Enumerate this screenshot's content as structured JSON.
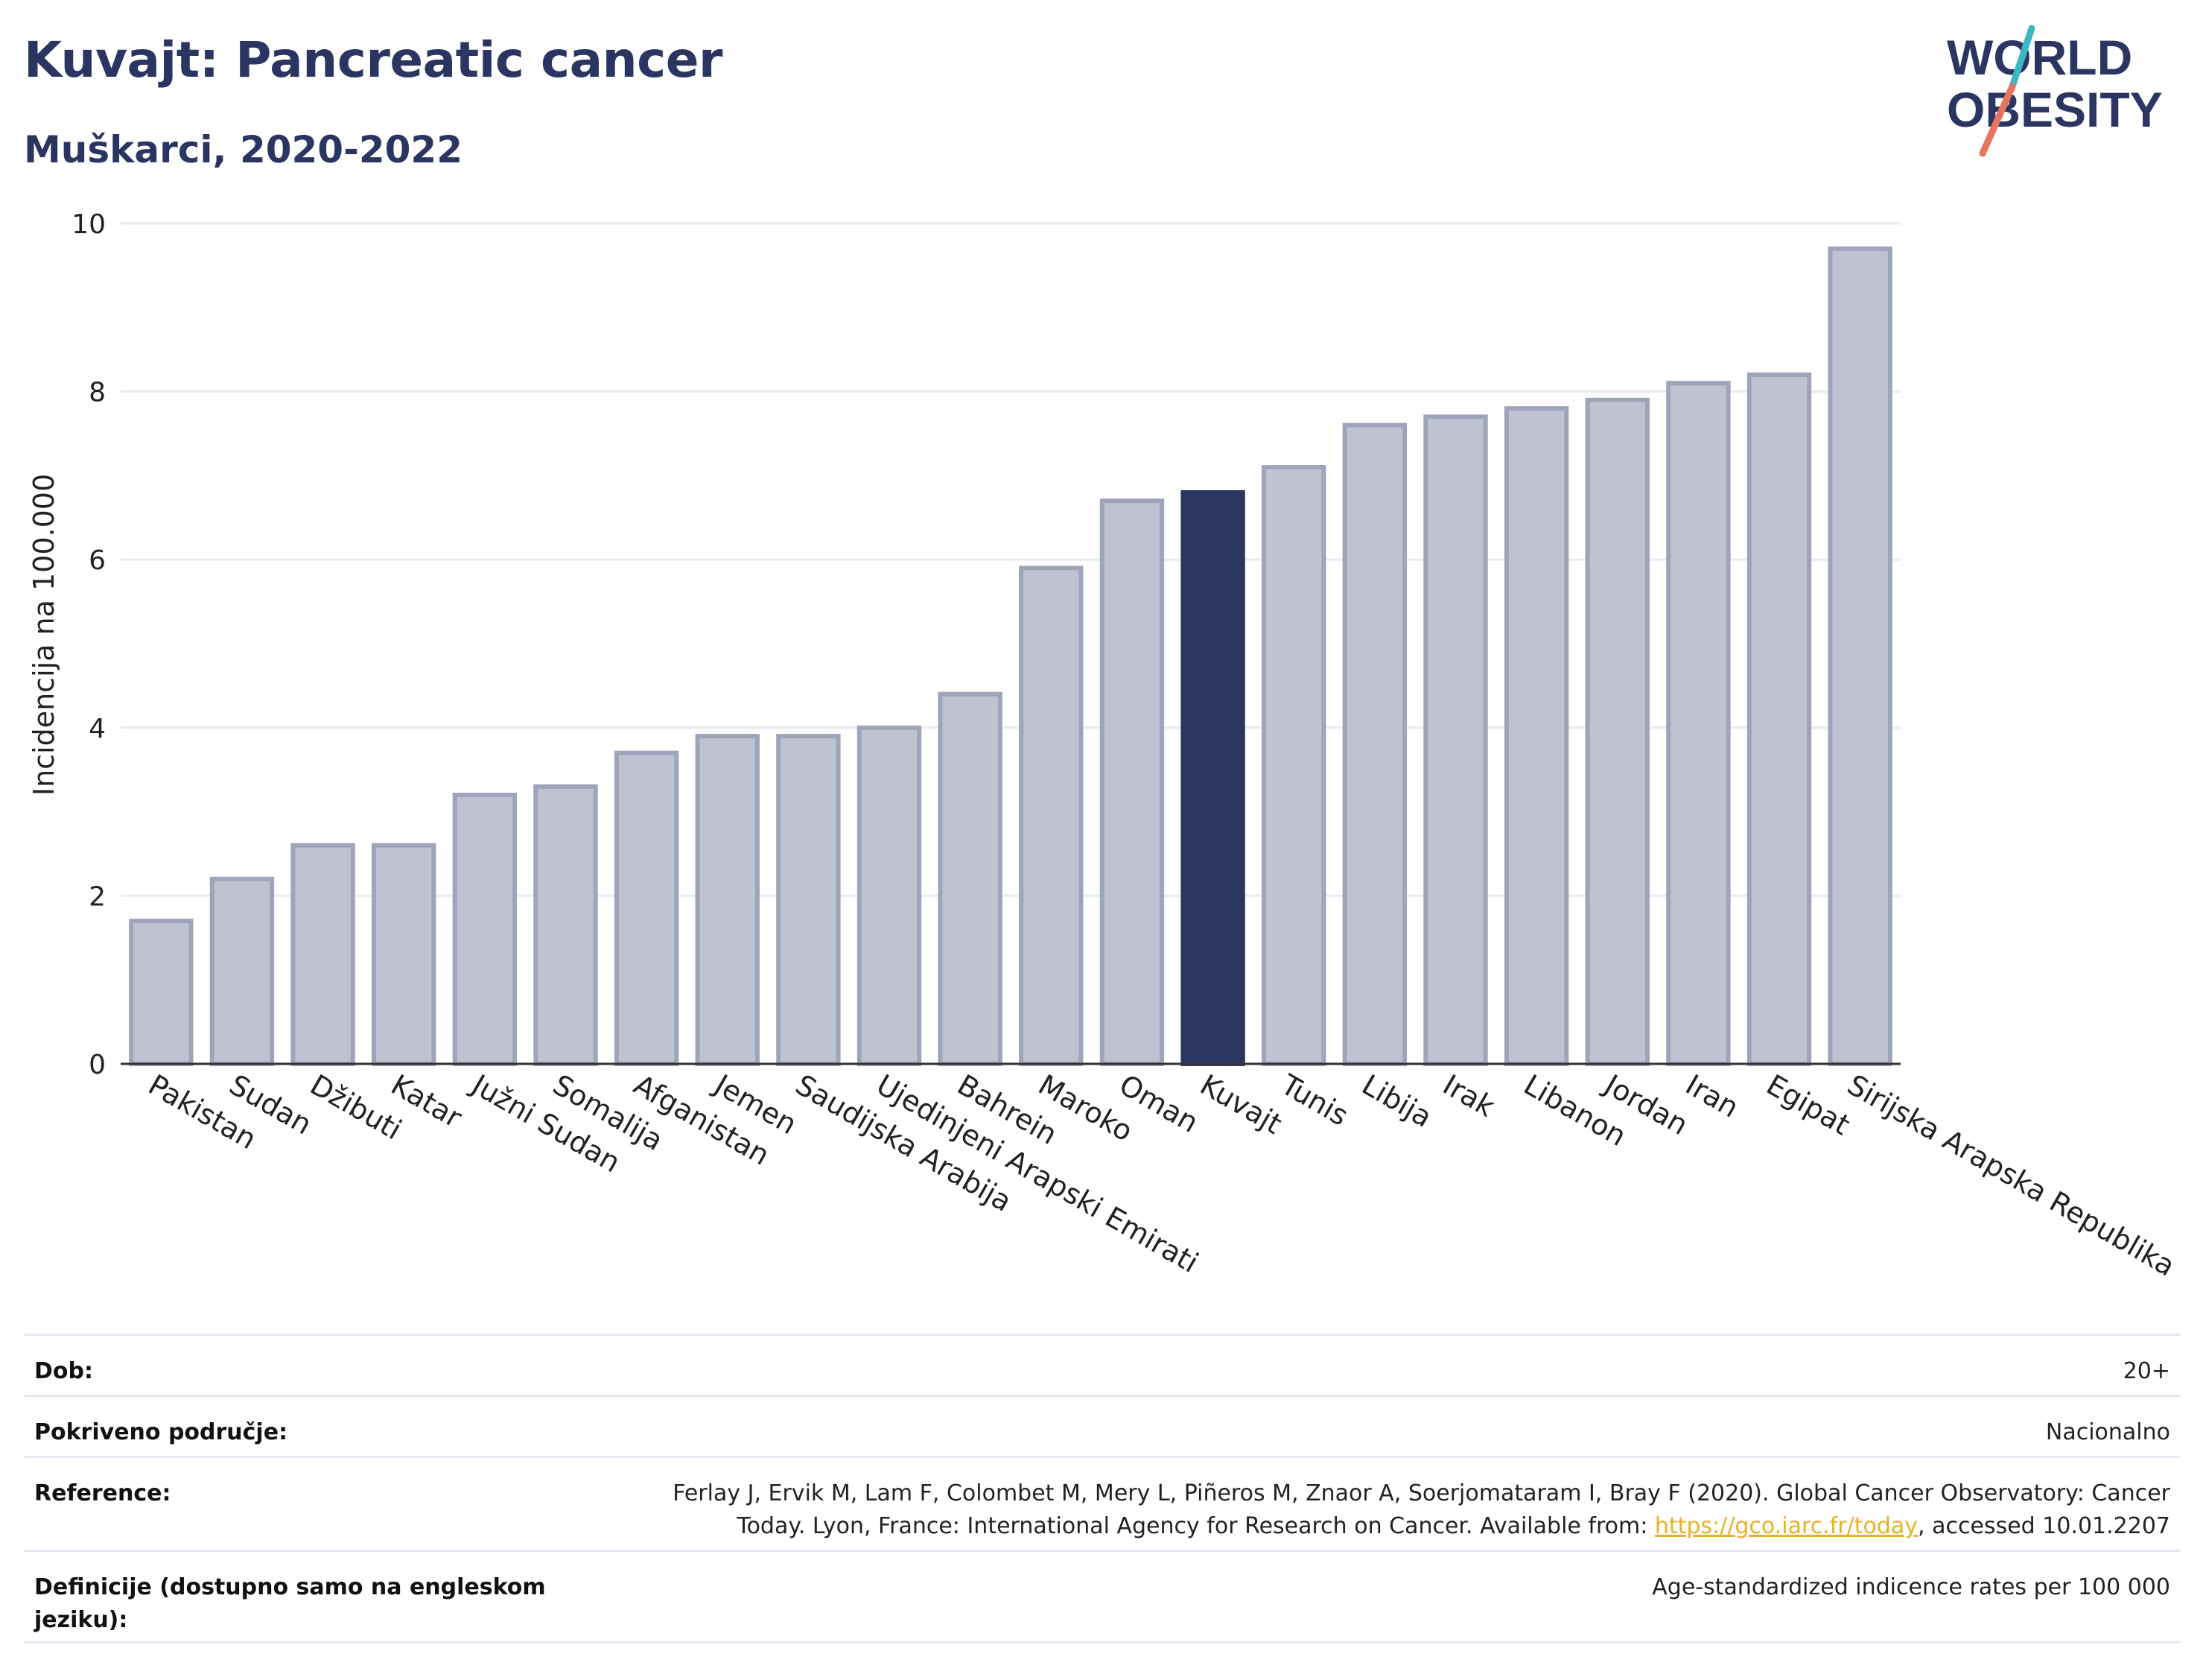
{
  "header": {
    "title": "Kuvajt: Pancreatic cancer",
    "subtitle": "Muškarci, 2020-2022"
  },
  "logo": {
    "line1": "WORLD",
    "line2": "OBESITY",
    "accent_teal": "#3bb8c3",
    "accent_red": "#e8735e",
    "text_color": "#2b3561"
  },
  "chart_data": {
    "type": "bar",
    "ylabel": "Incidencija na 100.000",
    "xlabel": "",
    "ylim": [
      0,
      10
    ],
    "yticks": [
      0,
      2,
      4,
      6,
      8,
      10
    ],
    "grid": true,
    "highlight_category": "Kuvajt",
    "colors": {
      "bar": "#bfc3d1",
      "bar_border": "#9ea4ba",
      "highlight": "#2b3561",
      "grid": "#e8ebf1",
      "axis": "#333333"
    },
    "categories": [
      "Pakistan",
      "Sudan",
      "Džibuti",
      "Katar",
      "Južni Sudan",
      "Somalija",
      "Afganistan",
      "Jemen",
      "Saudijska Arabija",
      "Ujedinjeni Arapski Emirati",
      "Bahrein",
      "Maroko",
      "Oman",
      "Kuvajt",
      "Tunis",
      "Libija",
      "Irak",
      "Libanon",
      "Jordan",
      "Iran",
      "Egipat",
      "Sirijska Arapska Republika"
    ],
    "values": [
      1.7,
      2.2,
      2.6,
      2.6,
      3.2,
      3.3,
      3.7,
      3.9,
      3.9,
      4.0,
      4.4,
      5.9,
      6.7,
      6.8,
      7.1,
      7.6,
      7.7,
      7.8,
      7.9,
      8.1,
      8.2,
      9.7
    ]
  },
  "info": {
    "rows": [
      {
        "label": "Dob:",
        "value": "20+"
      },
      {
        "label": "Pokriveno područje:",
        "value": "Nacionalno"
      },
      {
        "label": "Reference:",
        "value_before": "Ferlay J, Ervik M, Lam F, Colombet M, Mery L, Piñeros M, Znaor A, Soerjomataram I, Bray F (2020). Global Cancer Observatory: Cancer Today. Lyon, France: International Agency for Research on Cancer. Available from: ",
        "link": "https://gco.iarc.fr/today",
        "value_after": ", accessed 10.01.2207"
      },
      {
        "label": "Definicije (dostupno samo na engleskom jeziku):",
        "value": "Age-standardized indicence rates per 100 000"
      }
    ]
  }
}
